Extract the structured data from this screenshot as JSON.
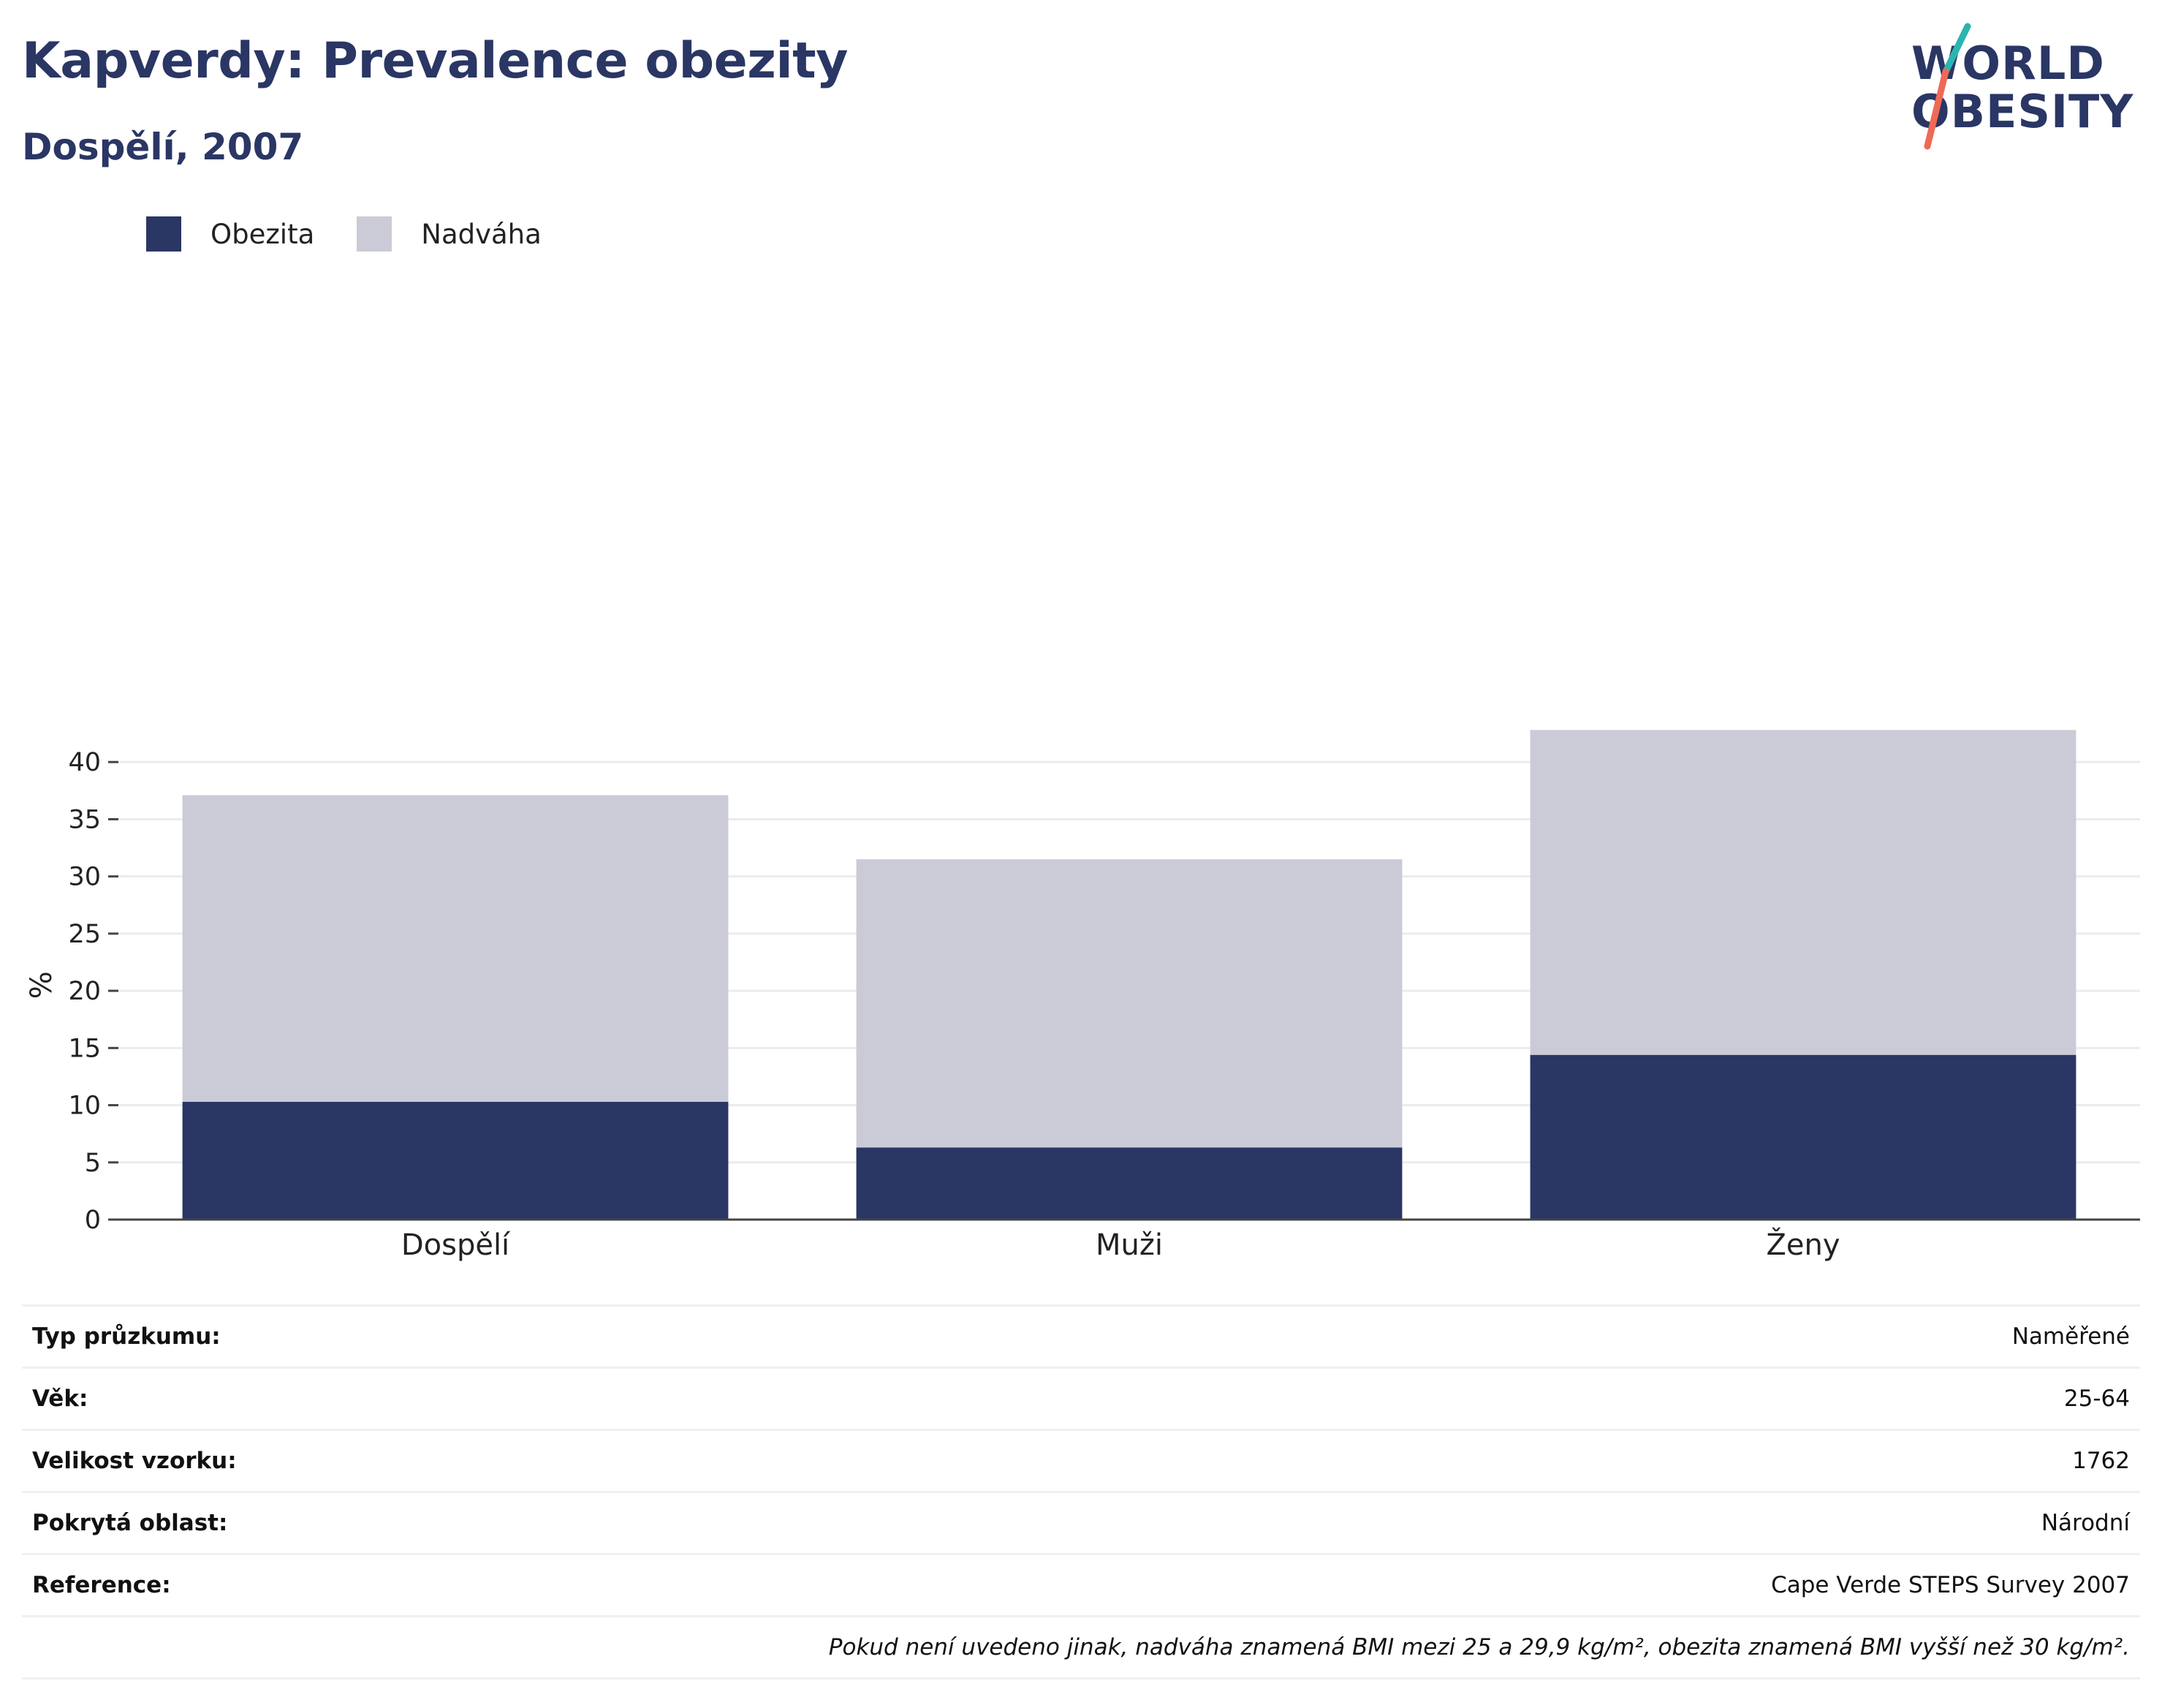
{
  "header": {
    "title": "Kapverdy: Prevalence obezity",
    "subtitle": "Dospělí, 2007"
  },
  "logo": {
    "line1": "WORLD",
    "line2": "OBESITY",
    "accent_teal": "#2bb5b0",
    "accent_coral": "#ef6a55"
  },
  "legend": {
    "obesity_label": "Obezita",
    "overweight_label": "Nadváha"
  },
  "colors": {
    "obesity": "#2a3664",
    "overweight": "#cacbd6",
    "grid": "#ebebf0",
    "axis": "#444444"
  },
  "chart_data": {
    "type": "bar",
    "stacked": true,
    "categories": [
      "Dospělí",
      "Muži",
      "Ženy"
    ],
    "series": [
      {
        "name": "Obezita",
        "values": [
          10.3,
          6.3,
          14.4
        ],
        "color": "#2a3664"
      },
      {
        "name": "Nadváha",
        "values": [
          26.8,
          25.2,
          28.4
        ],
        "color": "#cacbd6"
      }
    ],
    "ylabel": "%",
    "ylim": [
      0,
      45
    ],
    "yticks": [
      0,
      5,
      10,
      15,
      20,
      25,
      30,
      35,
      40
    ],
    "grid": true,
    "legend_position": "top-left"
  },
  "info_table": {
    "rows": [
      {
        "label": "Typ průzkumu:",
        "value": "Naměřené"
      },
      {
        "label": "Věk:",
        "value": "25-64"
      },
      {
        "label": "Velikost vzorku:",
        "value": "1762"
      },
      {
        "label": "Pokrytá oblast:",
        "value": "Národní"
      },
      {
        "label": "Reference:",
        "value": "Cape Verde STEPS Survey 2007"
      }
    ],
    "note": "Pokud není uvedeno jinak, nadváha znamená BMI mezi 25 a 29,9 kg/m², obezita znamená BMI vyšší než 30 kg/m²."
  }
}
